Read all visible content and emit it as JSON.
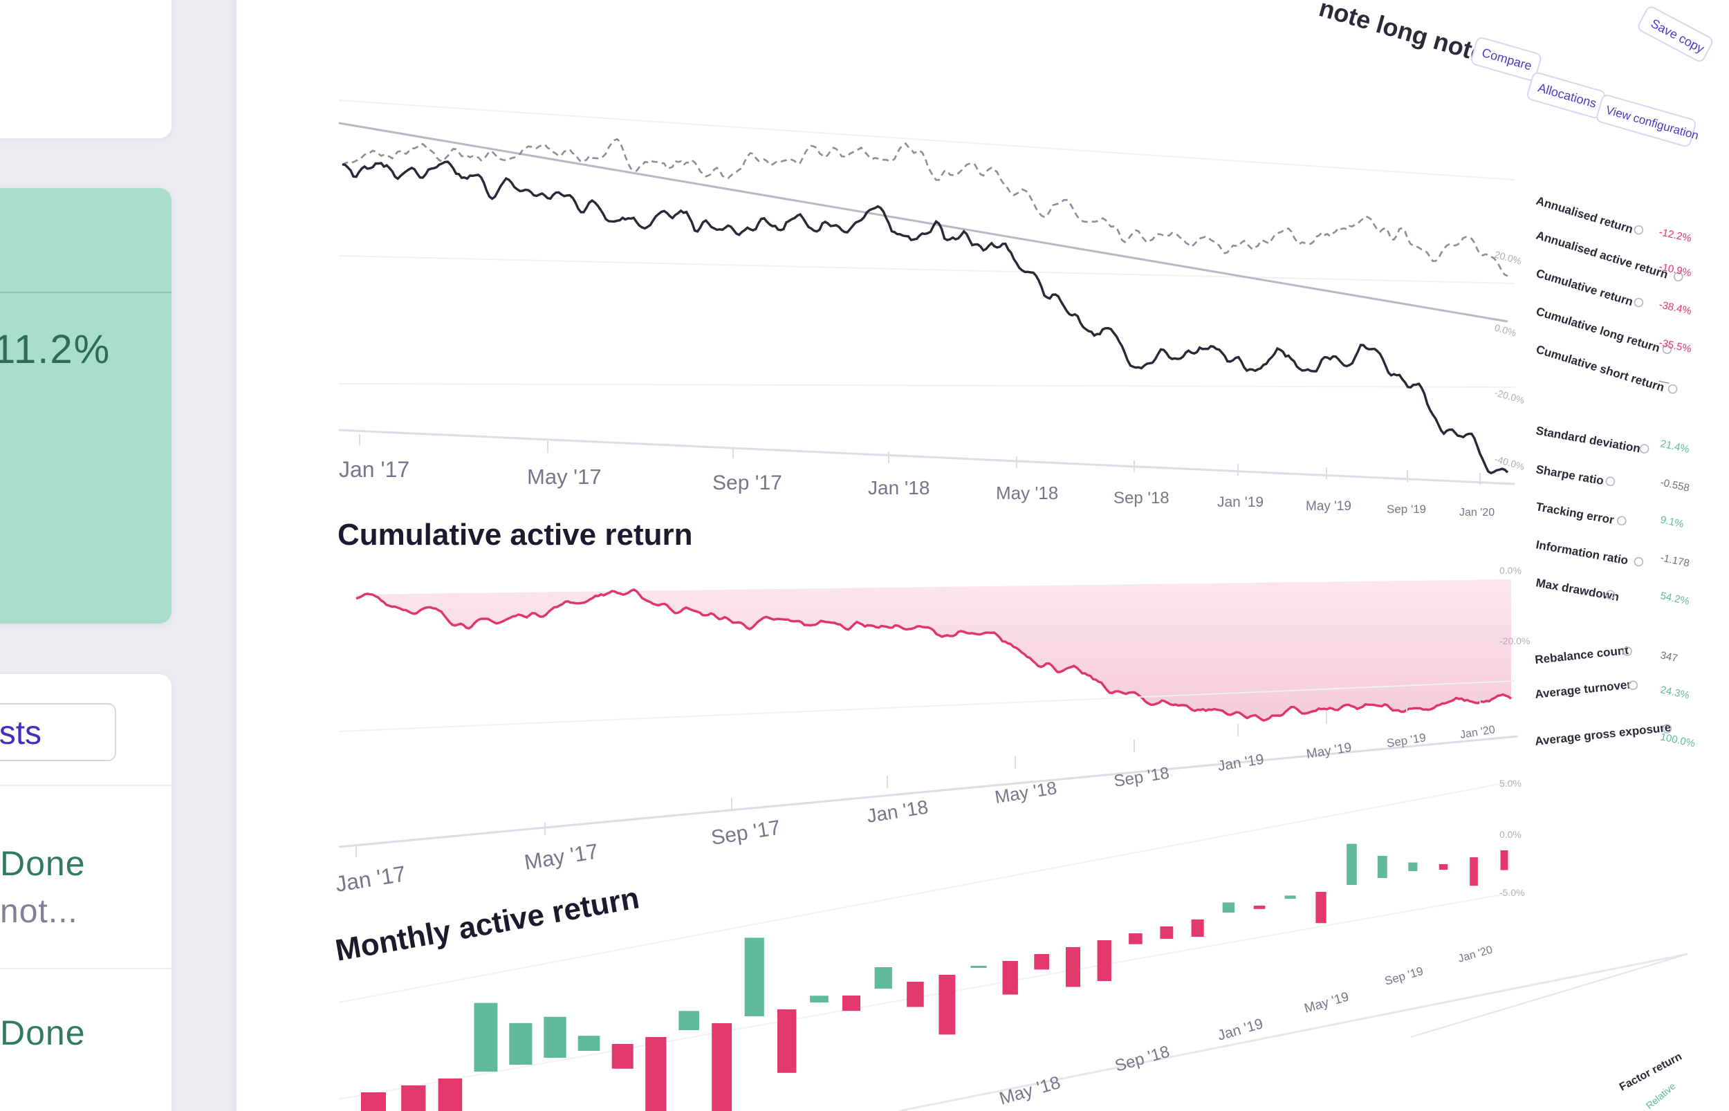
{
  "sidebar": {
    "metric_value": "11.2%",
    "tests_button_label": "ests",
    "list_items": [
      {
        "status": "Done",
        "note": "not..."
      },
      {
        "status": "Done",
        "note": ""
      }
    ]
  },
  "header": {
    "title": "note long note",
    "buttons": {
      "compare": "Compare",
      "allocations": "Allocations",
      "view_configuration": "View configuration",
      "save_copy": "Save copy"
    }
  },
  "charts": {
    "performance": {
      "title": "",
      "x_ticks": [
        "Jan '17",
        "May '17",
        "Sep '17",
        "Jan '18",
        "May '18",
        "Sep '18",
        "Jan '19",
        "May '19",
        "Sep '19",
        "Jan '20"
      ],
      "y_ticks": [
        "20.0%",
        "0.0%",
        "-20.0%",
        "-40.0%"
      ]
    },
    "cumulative_active": {
      "title": "Cumulative active return",
      "x_ticks": [
        "Jan '17",
        "May '17",
        "Sep '17",
        "Jan '18",
        "May '18",
        "Sep '18",
        "Jan '19",
        "May '19",
        "Sep '19",
        "Jan '20"
      ],
      "y_ticks": [
        "0.0%",
        "-20.0%"
      ]
    },
    "monthly_active": {
      "title": "Monthly active return",
      "x_ticks": [
        "May '18",
        "Sep '18",
        "Jan '19",
        "May '19",
        "Sep '19",
        "Jan '20"
      ],
      "y_ticks": [
        "5.0%",
        "0.0%",
        "-5.0%"
      ]
    }
  },
  "stats": {
    "group1": [
      {
        "label": "Annualised return",
        "value": "-12.2%"
      },
      {
        "label": "Annualised active return",
        "value": "-10.9%"
      },
      {
        "label": "Cumulative return",
        "value": "-38.4%"
      },
      {
        "label": "Cumulative long return",
        "value": "-35.5%"
      },
      {
        "label": "Cumulative short return",
        "value": "—"
      }
    ],
    "group2": [
      {
        "label": "Standard deviation",
        "value": "21.4%"
      },
      {
        "label": "Sharpe ratio",
        "value": "-0.558"
      },
      {
        "label": "Tracking error",
        "value": "9.1%"
      },
      {
        "label": "Information ratio",
        "value": "-1.178"
      },
      {
        "label": "Max drawdown",
        "value": "54.2%"
      }
    ],
    "group3": [
      {
        "label": "Rebalance count",
        "value": "347"
      },
      {
        "label": "Average turnover",
        "value": "24.3%"
      },
      {
        "label": "Average gross exposure",
        "value": "100.0%"
      }
    ],
    "footer": [
      "Factor return",
      "Relative"
    ]
  },
  "chart_data": [
    {
      "type": "line",
      "title": "",
      "x": [
        "Jan '17",
        "May '17",
        "Sep '17",
        "Jan '18",
        "May '18",
        "Sep '18",
        "Jan '19",
        "May '19",
        "Sep '19",
        "Jan '20"
      ],
      "series": [
        {
          "values": [
            5,
            2,
            0,
            -4,
            1,
            -2,
            -20,
            -22,
            -16,
            -40
          ]
        },
        {
          "values": [
            5,
            8,
            10,
            8,
            14,
            12,
            0,
            2,
            6,
            2
          ]
        }
      ],
      "colors": [
        "#2a2738",
        "#8d8b9c"
      ]
    },
    {
      "type": "area",
      "title": "Cumulative active return",
      "x": [
        "Jan '17",
        "May '17",
        "Sep '17",
        "Jan '18",
        "May '18",
        "Sep '18",
        "Jan '19",
        "May '19",
        "Sep '19",
        "Jan '20"
      ],
      "values": [
        0,
        -4,
        0,
        -4,
        -4,
        -6,
        -12,
        -14,
        -13,
        -12
      ],
      "colors": [
        "#e0356a",
        "#fbe2ea"
      ]
    },
    {
      "type": "bar",
      "title": "Monthly active return",
      "values": [
        -1.0,
        -1.5,
        -1.8,
        2.6,
        1.6,
        1.6,
        0.6,
        -1.0,
        -3.2,
        0.8,
        -3.8,
        3.4,
        -2.8,
        0.3,
        -0.7,
        1.0,
        -1.2,
        -2.9,
        0.1,
        -1.7,
        -0.8,
        -2.1,
        -2.2,
        -0.6,
        -0.7,
        -1.0,
        0.6,
        -0.2,
        0.2,
        -2.0,
        2.7,
        1.5,
        0.6,
        -0.4,
        -2.1,
        -1.5
      ],
      "colors": [
        "#5fb99a",
        "#e3386b"
      ]
    }
  ]
}
